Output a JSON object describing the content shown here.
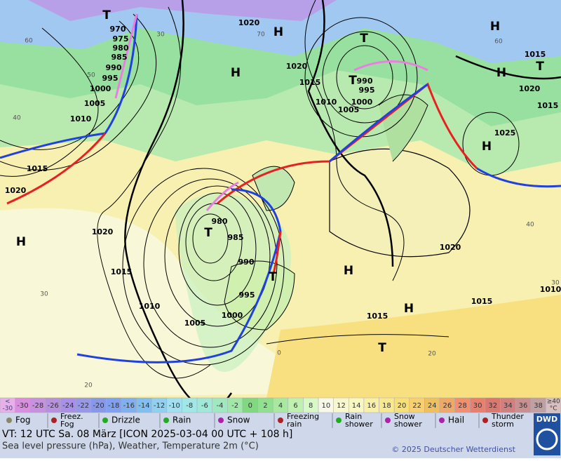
{
  "map": {
    "isobar_labels": [
      "970",
      "975",
      "980",
      "985",
      "990",
      "995",
      "1000",
      "1005",
      "1010",
      "1015",
      "1020",
      "1020",
      "1020",
      "1015",
      "1010",
      "1005",
      "1000",
      "995",
      "990",
      "1020",
      "1015",
      "1015",
      "1025",
      "980",
      "985",
      "990",
      "995",
      "1000",
      "1005",
      "1010",
      "1015",
      "1020",
      "1020",
      "1015",
      "1015",
      "1010"
    ],
    "temperature_labels": [
      "60",
      "50",
      "40",
      "30",
      "20",
      "70",
      "60",
      "40",
      "30",
      "20",
      "0",
      "30"
    ],
    "pressure_centers": [
      "H",
      "H",
      "H",
      "H",
      "H",
      "H",
      "H",
      "H",
      "T",
      "T",
      "T",
      "T",
      "T",
      "T",
      "T"
    ]
  },
  "color_scale": {
    "low_label": [
      "<",
      "-30"
    ],
    "steps": [
      -30,
      -28,
      -26,
      -24,
      -22,
      -20,
      -18,
      -16,
      -14,
      -12,
      -10,
      -8,
      -6,
      -4,
      -2,
      0,
      2,
      4,
      6,
      8,
      10,
      12,
      14,
      16,
      18,
      20,
      22,
      24,
      26,
      28,
      30,
      32,
      34,
      36,
      38
    ],
    "high_label": [
      "≥40",
      "°C"
    ],
    "colors": [
      "#e8b0e8",
      "#d98ee0",
      "#c890e0",
      "#b890e0",
      "#a890e8",
      "#9898e8",
      "#8898e8",
      "#80a0f0",
      "#80b0f0",
      "#80c0f0",
      "#90d0f0",
      "#a0e0f0",
      "#a0e8e8",
      "#a0e8d8",
      "#a0e8c0",
      "#a0e8a8",
      "#80d880",
      "#90e090",
      "#a8e8a0",
      "#c0f0b0",
      "#d8f8c8",
      "#f8f8e8",
      "#f8f8d0",
      "#f8f8c0",
      "#f8f0a8",
      "#f8e890",
      "#f8e078",
      "#f8d070",
      "#f0c060",
      "#f0a868",
      "#f09070",
      "#e88070",
      "#d87870",
      "#d08080",
      "#c89090",
      "#c0a0a0",
      "#d8c0c0"
    ]
  },
  "weather_legend": [
    [
      "Fog"
    ],
    [
      "Freez.",
      "Fog"
    ],
    [
      "Drizzle"
    ],
    [
      "Rain"
    ],
    [
      "Snow"
    ],
    [
      "Freezing",
      "rain"
    ],
    [
      "Rain",
      "shower"
    ],
    [
      "Snow",
      "shower"
    ],
    [
      "Hail"
    ],
    [
      "Thunder",
      "storm"
    ]
  ],
  "footer": {
    "valid_time": "VT: 12 UTC Sa.  08 März [ICON 2025-03-04  00 UTC + 108 h]",
    "description": "Sea level pressure (hPa), Weather, Temperature 2m (°C)",
    "copyright": "© 2025 Deutscher Wetterdienst",
    "logo": "DWD"
  }
}
